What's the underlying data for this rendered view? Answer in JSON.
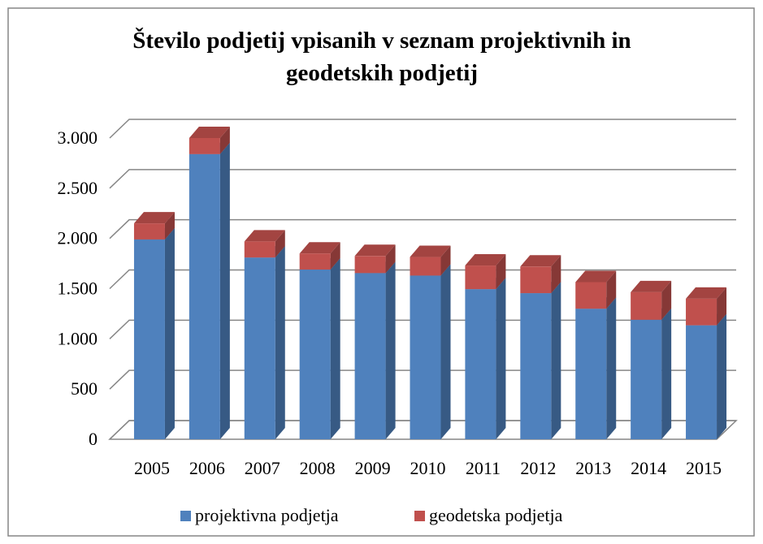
{
  "chart_data": {
    "type": "bar3d_stacked",
    "title": "Število podjetij vpisanih v seznam projektivnih in geodetskih podjetij",
    "categories": [
      "2005",
      "2006",
      "2007",
      "2008",
      "2009",
      "2010",
      "2011",
      "2012",
      "2013",
      "2014",
      "2015"
    ],
    "series": [
      {
        "name": "projektivna podjetja",
        "color": "#4f81bd",
        "values": [
          1990,
          2840,
          1810,
          1690,
          1655,
          1630,
          1495,
          1455,
          1300,
          1190,
          1135
        ]
      },
      {
        "name": "geodetska podjetja",
        "color": "#c0504d",
        "values": [
          160,
          160,
          160,
          160,
          170,
          185,
          235,
          265,
          265,
          275,
          265
        ]
      }
    ],
    "ylim": [
      0,
      3000
    ],
    "yticks": [
      0,
      500,
      {
        "value": 1000,
        "label": "1.000"
      },
      {
        "value": 1500,
        "label": "1.500"
      },
      {
        "value": 2000,
        "label": "2.000"
      },
      {
        "value": 2500,
        "label": "2.500"
      },
      {
        "value": 3000,
        "label": "3.000"
      }
    ],
    "grid": true,
    "legend": "bottom"
  }
}
